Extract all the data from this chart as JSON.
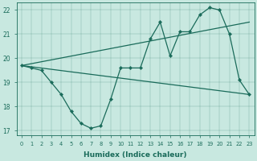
{
  "xlabel": "Humidex (Indice chaleur)",
  "background_color": "#c8e8e0",
  "line_color": "#1a6b5a",
  "xlim": [
    -0.5,
    23.5
  ],
  "ylim": [
    16.8,
    22.3
  ],
  "yticks": [
    17,
    18,
    19,
    20,
    21,
    22
  ],
  "xticks": [
    0,
    1,
    2,
    3,
    4,
    5,
    6,
    7,
    8,
    9,
    10,
    11,
    12,
    13,
    14,
    15,
    16,
    17,
    18,
    19,
    20,
    21,
    22,
    23
  ],
  "series1_x": [
    0,
    1,
    2,
    3,
    4,
    5,
    6,
    7,
    8,
    9,
    10,
    11,
    12,
    13,
    14,
    15,
    16,
    17,
    18,
    19,
    20,
    21,
    22,
    23
  ],
  "series1_y": [
    19.7,
    19.6,
    19.5,
    19.0,
    18.5,
    17.8,
    17.3,
    17.1,
    17.2,
    18.3,
    19.6,
    19.6,
    19.6,
    20.8,
    21.5,
    20.1,
    21.1,
    21.1,
    21.8,
    22.1,
    22.0,
    21.0,
    19.1,
    18.5
  ],
  "series2_x": [
    0,
    23
  ],
  "series2_y": [
    19.7,
    21.5
  ],
  "series3_x": [
    0,
    23
  ],
  "series3_y": [
    19.7,
    18.5
  ]
}
